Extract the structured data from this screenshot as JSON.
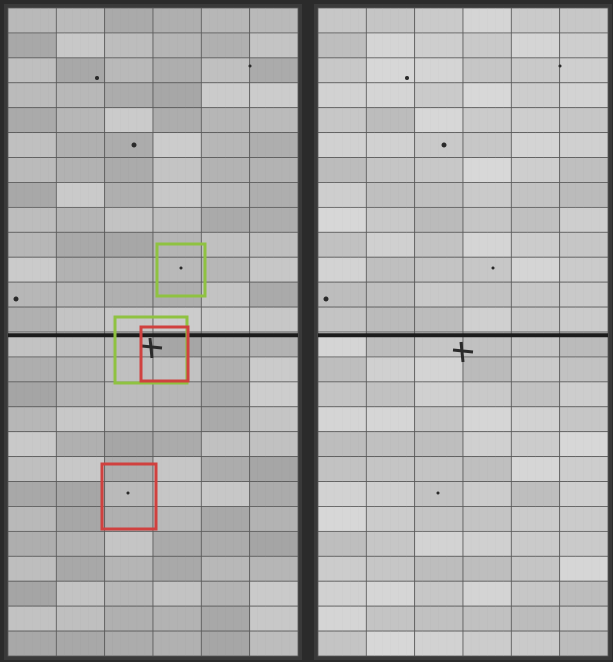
{
  "scene": {
    "description_visible_text": "",
    "panels": [
      {
        "name": "left-panel",
        "grid": {
          "columns": 6,
          "rows": 26
        },
        "tone": "darker",
        "annotations": [
          {
            "color": "#8fc241",
            "label_shown": false
          },
          {
            "color": "#8fc241",
            "label_shown": false
          },
          {
            "color": "#d0413f",
            "label_shown": false
          },
          {
            "color": "#d0413f",
            "label_shown": false
          }
        ]
      },
      {
        "name": "right-panel",
        "grid": {
          "columns": 6,
          "rows": 26
        },
        "tone": "lighter",
        "annotations": []
      }
    ],
    "colors": {
      "background": "#2b2b2b",
      "frame": "#3a3a3a",
      "cell_left_base": "#b9b9b9",
      "cell_right_base": "#c9c9c9",
      "grid_line": "#5a5a5a",
      "busbar": "#1c1c1c",
      "green_box": "#8fc241",
      "red_box": "#d0413f",
      "defect": "#2a2a2a"
    }
  }
}
